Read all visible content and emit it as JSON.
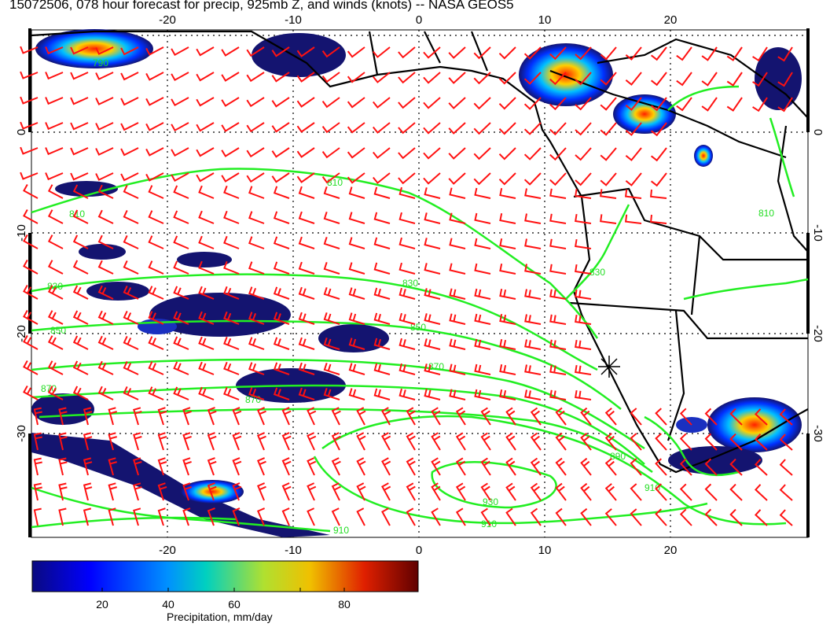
{
  "title": "15072506, 078 hour forecast for precip, 925mb Z, and winds (knots) -- NASA GEOS5",
  "map": {
    "lon_labels": [
      "-20",
      "-10",
      "0",
      "10",
      "20"
    ],
    "lat_labels": [
      "0",
      "-10",
      "-20",
      "-30"
    ],
    "contour_labels": [
      "790",
      "810",
      "810",
      "830",
      "830",
      "850",
      "850",
      "870",
      "870",
      "890",
      "910",
      "930",
      "910",
      "910",
      "870",
      "830",
      "810"
    ],
    "colors": {
      "contour": "#22ee22",
      "barb": "#ff1111",
      "land": "#000000",
      "gridline": "#000000"
    }
  },
  "colorbar": {
    "title": "Precipitation, mm/day",
    "ticks": [
      "20",
      "40",
      "60",
      "80"
    ],
    "colors": [
      "#0a0a80",
      "#0000ff",
      "#0090ff",
      "#00d0c0",
      "#b0e030",
      "#f0c000",
      "#e02000",
      "#600000"
    ]
  }
}
